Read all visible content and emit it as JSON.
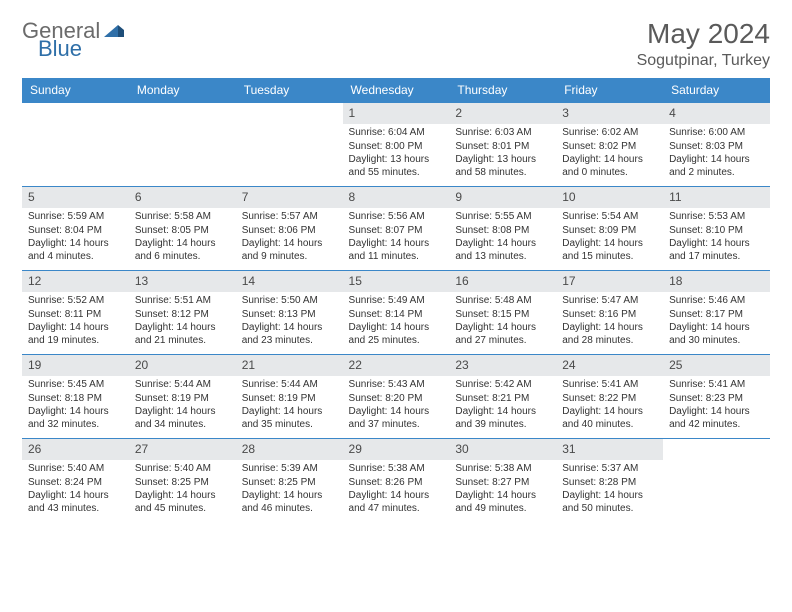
{
  "brand": {
    "text1": "General",
    "text2": "Blue"
  },
  "title": {
    "month_year": "May 2024",
    "location": "Sogutpinar, Turkey"
  },
  "day_names": [
    "Sunday",
    "Monday",
    "Tuesday",
    "Wednesday",
    "Thursday",
    "Friday",
    "Saturday"
  ],
  "colors": {
    "header_bg": "#3b87c8",
    "header_fg": "#ffffff",
    "daynum_bg": "#e6e8ea",
    "text": "#333333",
    "brand_gray": "#6b6b6b",
    "brand_blue": "#2f6fa8"
  },
  "weeks": [
    [
      null,
      null,
      null,
      {
        "n": "1",
        "sr": "6:04 AM",
        "ss": "8:00 PM",
        "dl": "13 hours and 55 minutes."
      },
      {
        "n": "2",
        "sr": "6:03 AM",
        "ss": "8:01 PM",
        "dl": "13 hours and 58 minutes."
      },
      {
        "n": "3",
        "sr": "6:02 AM",
        "ss": "8:02 PM",
        "dl": "14 hours and 0 minutes."
      },
      {
        "n": "4",
        "sr": "6:00 AM",
        "ss": "8:03 PM",
        "dl": "14 hours and 2 minutes."
      }
    ],
    [
      {
        "n": "5",
        "sr": "5:59 AM",
        "ss": "8:04 PM",
        "dl": "14 hours and 4 minutes."
      },
      {
        "n": "6",
        "sr": "5:58 AM",
        "ss": "8:05 PM",
        "dl": "14 hours and 6 minutes."
      },
      {
        "n": "7",
        "sr": "5:57 AM",
        "ss": "8:06 PM",
        "dl": "14 hours and 9 minutes."
      },
      {
        "n": "8",
        "sr": "5:56 AM",
        "ss": "8:07 PM",
        "dl": "14 hours and 11 minutes."
      },
      {
        "n": "9",
        "sr": "5:55 AM",
        "ss": "8:08 PM",
        "dl": "14 hours and 13 minutes."
      },
      {
        "n": "10",
        "sr": "5:54 AM",
        "ss": "8:09 PM",
        "dl": "14 hours and 15 minutes."
      },
      {
        "n": "11",
        "sr": "5:53 AM",
        "ss": "8:10 PM",
        "dl": "14 hours and 17 minutes."
      }
    ],
    [
      {
        "n": "12",
        "sr": "5:52 AM",
        "ss": "8:11 PM",
        "dl": "14 hours and 19 minutes."
      },
      {
        "n": "13",
        "sr": "5:51 AM",
        "ss": "8:12 PM",
        "dl": "14 hours and 21 minutes."
      },
      {
        "n": "14",
        "sr": "5:50 AM",
        "ss": "8:13 PM",
        "dl": "14 hours and 23 minutes."
      },
      {
        "n": "15",
        "sr": "5:49 AM",
        "ss": "8:14 PM",
        "dl": "14 hours and 25 minutes."
      },
      {
        "n": "16",
        "sr": "5:48 AM",
        "ss": "8:15 PM",
        "dl": "14 hours and 27 minutes."
      },
      {
        "n": "17",
        "sr": "5:47 AM",
        "ss": "8:16 PM",
        "dl": "14 hours and 28 minutes."
      },
      {
        "n": "18",
        "sr": "5:46 AM",
        "ss": "8:17 PM",
        "dl": "14 hours and 30 minutes."
      }
    ],
    [
      {
        "n": "19",
        "sr": "5:45 AM",
        "ss": "8:18 PM",
        "dl": "14 hours and 32 minutes."
      },
      {
        "n": "20",
        "sr": "5:44 AM",
        "ss": "8:19 PM",
        "dl": "14 hours and 34 minutes."
      },
      {
        "n": "21",
        "sr": "5:44 AM",
        "ss": "8:19 PM",
        "dl": "14 hours and 35 minutes."
      },
      {
        "n": "22",
        "sr": "5:43 AM",
        "ss": "8:20 PM",
        "dl": "14 hours and 37 minutes."
      },
      {
        "n": "23",
        "sr": "5:42 AM",
        "ss": "8:21 PM",
        "dl": "14 hours and 39 minutes."
      },
      {
        "n": "24",
        "sr": "5:41 AM",
        "ss": "8:22 PM",
        "dl": "14 hours and 40 minutes."
      },
      {
        "n": "25",
        "sr": "5:41 AM",
        "ss": "8:23 PM",
        "dl": "14 hours and 42 minutes."
      }
    ],
    [
      {
        "n": "26",
        "sr": "5:40 AM",
        "ss": "8:24 PM",
        "dl": "14 hours and 43 minutes."
      },
      {
        "n": "27",
        "sr": "5:40 AM",
        "ss": "8:25 PM",
        "dl": "14 hours and 45 minutes."
      },
      {
        "n": "28",
        "sr": "5:39 AM",
        "ss": "8:25 PM",
        "dl": "14 hours and 46 minutes."
      },
      {
        "n": "29",
        "sr": "5:38 AM",
        "ss": "8:26 PM",
        "dl": "14 hours and 47 minutes."
      },
      {
        "n": "30",
        "sr": "5:38 AM",
        "ss": "8:27 PM",
        "dl": "14 hours and 49 minutes."
      },
      {
        "n": "31",
        "sr": "5:37 AM",
        "ss": "8:28 PM",
        "dl": "14 hours and 50 minutes."
      },
      null
    ]
  ],
  "labels": {
    "sunrise": "Sunrise:",
    "sunset": "Sunset:",
    "daylight": "Daylight:"
  }
}
